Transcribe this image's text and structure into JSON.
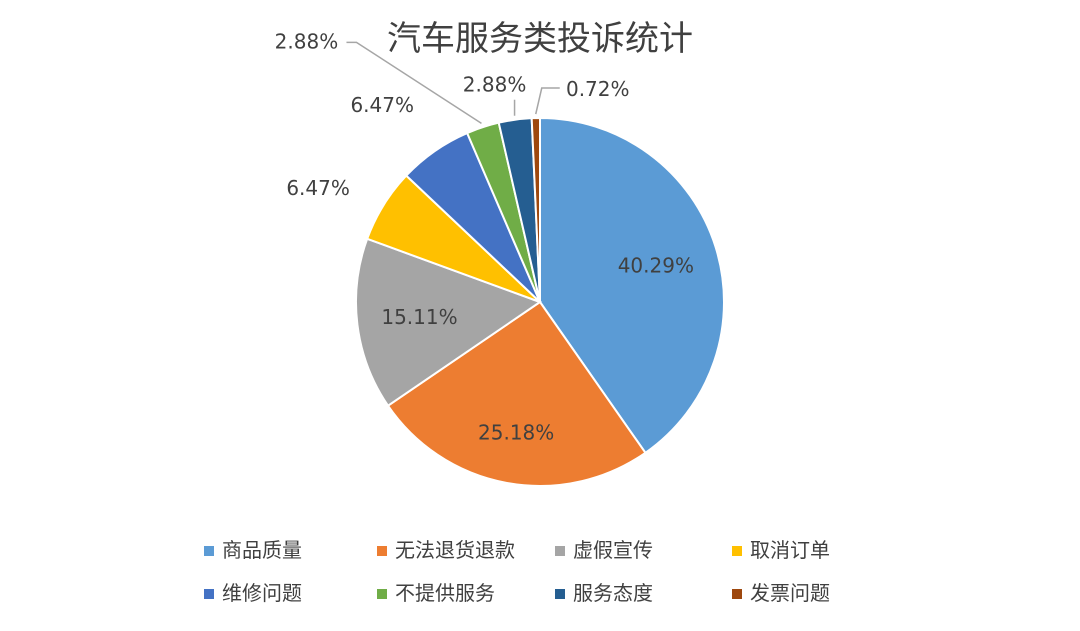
{
  "chart_data": {
    "type": "pie",
    "title": "汽车服务类投诉统计",
    "legend_position": "bottom",
    "slices": [
      {
        "name": "商品质量",
        "value": 40.29,
        "label": "40.29%",
        "color": "#5B9BD5"
      },
      {
        "name": "无法退货退款",
        "value": 25.18,
        "label": "25.18%",
        "color": "#ED7D31"
      },
      {
        "name": "虚假宣传",
        "value": 15.11,
        "label": "15.11%",
        "color": "#A5A5A5"
      },
      {
        "name": "取消订单",
        "value": 6.47,
        "label": "6.47%",
        "color": "#FFC000"
      },
      {
        "name": "维修问题",
        "value": 6.47,
        "label": "6.47%",
        "color": "#4472C4"
      },
      {
        "name": "不提供服务",
        "value": 2.88,
        "label": "2.88%",
        "color": "#70AD47"
      },
      {
        "name": "服务态度",
        "value": 2.88,
        "label": "2.88%",
        "color": "#255E91"
      },
      {
        "name": "发票问题",
        "value": 0.72,
        "label": "0.72%",
        "color": "#9E480E"
      }
    ]
  }
}
